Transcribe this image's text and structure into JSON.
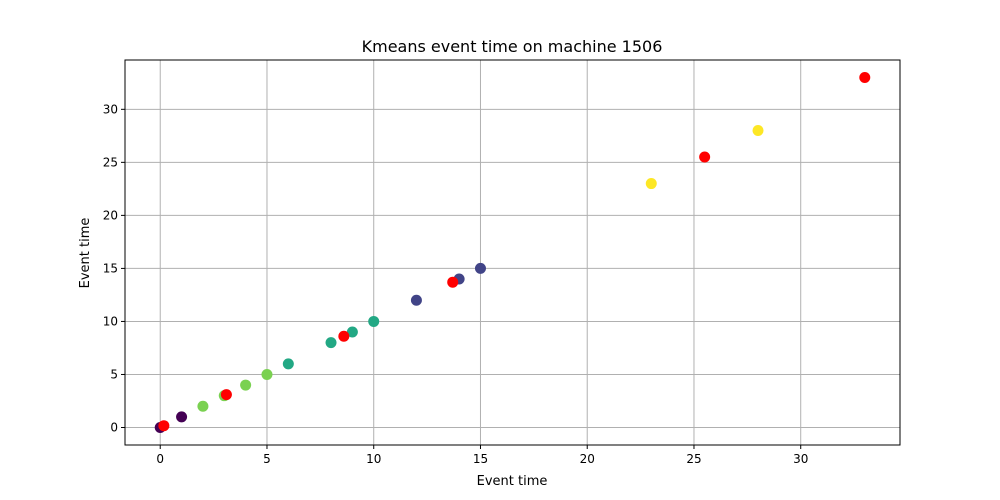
{
  "chart_data": {
    "type": "scatter",
    "title": "Kmeans event time on machine 1506",
    "xlabel": "Event time",
    "ylabel": "Event time",
    "xlim": [
      -1.65,
      34.65
    ],
    "ylim": [
      -1.65,
      34.65
    ],
    "xticks": [
      0,
      5,
      10,
      15,
      20,
      25,
      30
    ],
    "yticks": [
      0,
      5,
      10,
      15,
      20,
      25,
      30
    ],
    "grid": true,
    "points": [
      {
        "x": 0,
        "y": 0,
        "color": "#440154"
      },
      {
        "x": 1,
        "y": 1,
        "color": "#440154"
      },
      {
        "x": 2,
        "y": 2,
        "color": "#7ad151"
      },
      {
        "x": 3,
        "y": 3,
        "color": "#7ad151"
      },
      {
        "x": 4,
        "y": 4,
        "color": "#7ad151"
      },
      {
        "x": 5,
        "y": 5,
        "color": "#7ad151"
      },
      {
        "x": 6,
        "y": 6,
        "color": "#22a884"
      },
      {
        "x": 8,
        "y": 8,
        "color": "#22a884"
      },
      {
        "x": 9,
        "y": 9,
        "color": "#22a884"
      },
      {
        "x": 10,
        "y": 10,
        "color": "#22a884"
      },
      {
        "x": 12,
        "y": 12,
        "color": "#414487"
      },
      {
        "x": 14,
        "y": 14,
        "color": "#414487"
      },
      {
        "x": 15,
        "y": 15,
        "color": "#414487"
      },
      {
        "x": 23,
        "y": 23,
        "color": "#fde725"
      },
      {
        "x": 28,
        "y": 28,
        "color": "#fde725"
      }
    ],
    "centroids": [
      {
        "x": 0.17,
        "y": 0.17,
        "color": "#ff0000"
      },
      {
        "x": 3.1,
        "y": 3.1,
        "color": "#ff0000"
      },
      {
        "x": 8.6,
        "y": 8.6,
        "color": "#ff0000"
      },
      {
        "x": 13.7,
        "y": 13.7,
        "color": "#ff0000"
      },
      {
        "x": 25.5,
        "y": 25.5,
        "color": "#ff0000"
      },
      {
        "x": 33,
        "y": 33,
        "color": "#ff0000"
      }
    ]
  }
}
